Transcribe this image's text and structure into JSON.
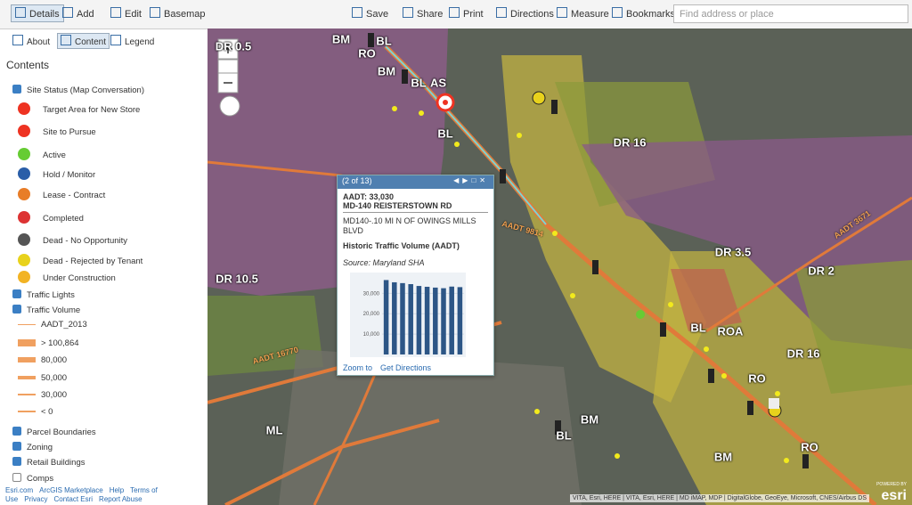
{
  "toolbar": {
    "left": [
      "Details",
      "Add",
      "Edit",
      "Basemap"
    ],
    "right": [
      "Save",
      "Share",
      "Print",
      "Directions",
      "Measure",
      "Bookmarks"
    ],
    "search_placeholder": "Find address or place"
  },
  "sidebar": {
    "tabs": [
      "About",
      "Content",
      "Legend"
    ],
    "heading": "Contents",
    "layers": [
      {
        "name": "Site Status (Map Conversation)",
        "checked": true,
        "legend": [
          "Target Area for New Store",
          "Site to Pursue",
          "Active",
          "Hold / Monitor",
          "Lease - Contract",
          "Completed",
          "Dead - No Opportunity",
          "Dead - Rejected by Tenant",
          "Under Construction"
        ]
      },
      {
        "name": "Traffic Lights",
        "checked": true
      },
      {
        "name": "Traffic Volume",
        "checked": true,
        "legend": [
          "AADT_2013",
          "> 100,864",
          "80,000",
          "50,000",
          "30,000",
          "< 0"
        ]
      },
      {
        "name": "Parcel Boundaries",
        "checked": true
      },
      {
        "name": "Zoning",
        "checked": true
      },
      {
        "name": "Retail Buildings",
        "checked": true
      },
      {
        "name": "Comps",
        "checked": false
      }
    ],
    "footer_links": [
      "Esri.com",
      "ArcGIS Marketplace",
      "Help",
      "Terms of Use",
      "Privacy",
      "Contact Esri",
      "Report Abuse"
    ]
  },
  "map": {
    "labels": [
      "DR 0.5",
      "BM",
      "BL",
      "RO",
      "BM",
      "BL",
      "AS",
      "BL",
      "DR 16",
      "DR 3.5",
      "DR 2",
      "DR 10.5",
      "BL",
      "ROA",
      "DR 16",
      "RO",
      "BM",
      "BL",
      "BM",
      "RO",
      "ML"
    ],
    "road_labels": [
      "AADT 3671",
      "AADT 16770",
      "AADT 9814"
    ],
    "attribution": "VITA, Esri, HERE | VITA, Esri, HERE | MD iMAP, MDP | DigitalGlobe, GeoEye, Microsoft, CNES/Airbus DS",
    "powered_by": "POWERED BY",
    "brand": "esri"
  },
  "popup": {
    "counter": "(2 of 13)",
    "title": "AADT: 33,030",
    "subtitle": "MD-140 REISTERSTOWN RD",
    "description": "MD140-.10 MI N OF OWINGS MILLS BLVD",
    "chart_title": "Historic Traffic Volume (AADT)",
    "source": "Source: Maryland SHA",
    "actions": [
      "Zoom to",
      "Get Directions"
    ],
    "chart_data": {
      "type": "bar",
      "values": [
        36500,
        35400,
        35000,
        34500,
        33600,
        33200,
        32800,
        32500,
        33300,
        33030
      ],
      "color": "#2d5686",
      "ylim": [
        0,
        38000
      ],
      "yticks": [
        {
          "value": 10000,
          "label": "10,000"
        },
        {
          "value": 20000,
          "label": "20,000"
        },
        {
          "value": 30000,
          "label": "30,000"
        }
      ]
    }
  }
}
